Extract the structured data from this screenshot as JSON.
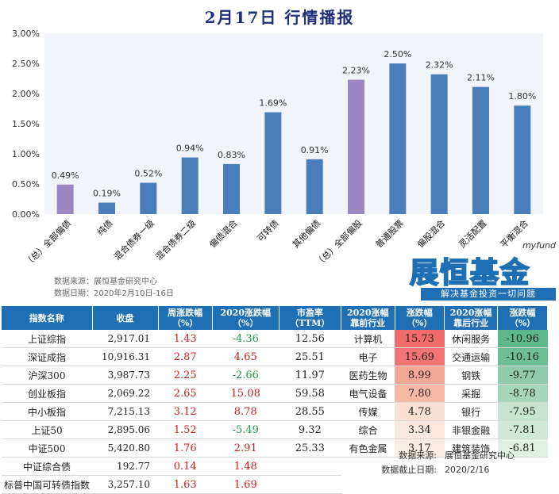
{
  "title": "2月17日  行情播报",
  "chart_data": {
    "type": "bar",
    "categories": [
      "（总）全部偏债",
      "纯债",
      "混合债券一级",
      "混合债券二级",
      "偏债混合",
      "可转债",
      "其他偏债",
      "（总）全部偏股",
      "普通股票",
      "偏股混合",
      "灵活配置",
      "平衡混合"
    ],
    "values": [
      0.49,
      0.19,
      0.52,
      0.94,
      0.83,
      1.69,
      0.91,
      2.23,
      2.5,
      2.32,
      2.11,
      1.8
    ],
    "value_labels": [
      "0.49%",
      "0.19%",
      "0.52%",
      "0.94%",
      "0.83%",
      "1.69%",
      "0.91%",
      "2.23%",
      "2.50%",
      "2.32%",
      "2.11%",
      "1.80%"
    ],
    "ylim": [
      0,
      3.0
    ],
    "yticks": [
      "0.00%",
      "0.50%",
      "1.00%",
      "1.50%",
      "2.00%",
      "2.50%",
      "3.00%"
    ],
    "grid": false,
    "colors": {
      "summary": "#9b88c2",
      "normal": "#4a7ebb",
      "plot_bg": "#f1f4f9"
    },
    "summary_index": [
      0,
      7
    ]
  },
  "source_note": {
    "line1": "数据来源：展恒基金研究中心",
    "line2": "数据日期：2020年2月10日-16日"
  },
  "logo": {
    "small": "myfund",
    "main": "展恒基金",
    "tagline": "解决基金投资一切问题"
  },
  "index_table": {
    "headers": [
      "指数名称",
      "收盘",
      "周涨跌幅（%）",
      "2020涨跌幅（%）",
      "市盈率（TTM）"
    ],
    "rows": [
      {
        "name": "上证综指",
        "close": "2,917.01",
        "week": "1.43",
        "ytd": "-4.36",
        "pe": "12.56"
      },
      {
        "name": "深证成指",
        "close": "10,916.31",
        "week": "2.87",
        "ytd": "4.65",
        "pe": "25.51"
      },
      {
        "name": "沪深300",
        "close": "3,987.73",
        "week": "2.25",
        "ytd": "-2.66",
        "pe": "11.97"
      },
      {
        "name": "创业板指",
        "close": "2,069.22",
        "week": "2.65",
        "ytd": "15.08",
        "pe": "59.58"
      },
      {
        "name": "中小板指",
        "close": "7,215.13",
        "week": "3.12",
        "ytd": "8.78",
        "pe": "28.55"
      },
      {
        "name": "上证50",
        "close": "2,895.06",
        "week": "1.52",
        "ytd": "-5.49",
        "pe": "9.32"
      },
      {
        "name": "中证500",
        "close": "5,420.80",
        "week": "1.76",
        "ytd": "2.91",
        "pe": "25.33"
      },
      {
        "name": "中证综合债",
        "close": "192.77",
        "week": "0.14",
        "ytd": "1.48",
        "pe": ""
      },
      {
        "name": "标普中国可转债指数",
        "close": "3,257.10",
        "week": "1.63",
        "ytd": "1.69",
        "pe": ""
      }
    ]
  },
  "industry_table": {
    "headers": [
      "2020涨幅靠前行业",
      "涨跌幅（%）",
      "2020涨幅靠后行业",
      "涨跌幅（%）"
    ],
    "rows": [
      {
        "top": "计算机",
        "top_val": "15.73",
        "bottom": "休闲服务",
        "bottom_val": "-10.96"
      },
      {
        "top": "电子",
        "top_val": "15.69",
        "bottom": "交通运输",
        "bottom_val": "-10.16"
      },
      {
        "top": "医药生物",
        "top_val": "8.99",
        "bottom": "钢铁",
        "bottom_val": "-9.77"
      },
      {
        "top": "电气设备",
        "top_val": "7.80",
        "bottom": "采掘",
        "bottom_val": "-8.78"
      },
      {
        "top": "传媒",
        "top_val": "4.78",
        "bottom": "银行",
        "bottom_val": "-7.95"
      },
      {
        "top": "综合",
        "top_val": "3.34",
        "bottom": "非银金融",
        "bottom_val": "-7.81"
      },
      {
        "top": "有色金属",
        "top_val": "3.17",
        "bottom": "建筑装饰",
        "bottom_val": "-6.81"
      }
    ]
  },
  "bottom_source": {
    "source_label": "数据来源:",
    "source_value": "展恒基金研究中心",
    "date_label": "数据截止日期:",
    "date_value": "2020/2/16"
  },
  "colors": {
    "header_bg": "#1f6fb5",
    "up": "#cc1f1f",
    "down": "#1e9a4a",
    "top_heat": [
      "#f26b6b",
      "#f27474",
      "#f5a898",
      "#f7b8a6",
      "#fae0d2",
      "#fbe9df",
      "#fbece3"
    ],
    "bottom_heat": [
      "#5fb78c",
      "#6dbd95",
      "#8fcbaa",
      "#a6d5b9",
      "#c6e4d0",
      "#cfe8d7",
      "#dff0e3"
    ]
  }
}
